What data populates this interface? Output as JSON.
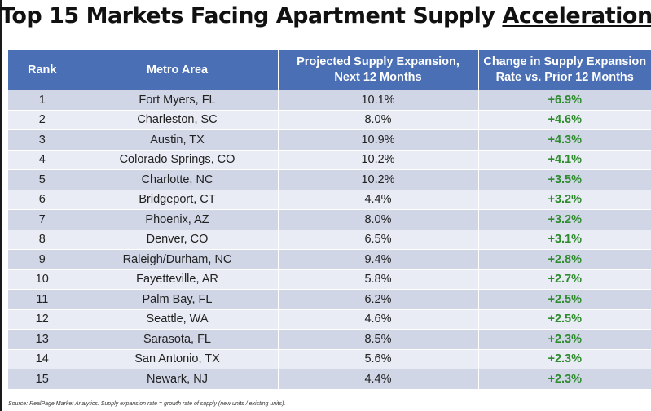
{
  "title": {
    "prefix": "Top 15 Markets Facing Apartment Supply ",
    "underlined": "Acceleration"
  },
  "chart_data": {
    "type": "table",
    "title": "Top 15 Markets Facing Apartment Supply Acceleration",
    "columns": [
      {
        "line1": "Rank",
        "line2": ""
      },
      {
        "line1": "Metro Area",
        "line2": ""
      },
      {
        "line1": "Projected Supply Expansion,",
        "line2": "Next 12 Months"
      },
      {
        "line1": "Change in Supply Expansion",
        "line2": "Rate vs. Prior 12 Months"
      }
    ],
    "rows": [
      {
        "rank": "1",
        "metro": "Fort Myers, FL",
        "expansion": "10.1%",
        "change": "+6.9%"
      },
      {
        "rank": "2",
        "metro": "Charleston, SC",
        "expansion": "8.0%",
        "change": "+4.6%"
      },
      {
        "rank": "3",
        "metro": "Austin, TX",
        "expansion": "10.9%",
        "change": "+4.3%"
      },
      {
        "rank": "4",
        "metro": "Colorado Springs, CO",
        "expansion": "10.2%",
        "change": "+4.1%"
      },
      {
        "rank": "5",
        "metro": "Charlotte, NC",
        "expansion": "10.2%",
        "change": "+3.5%"
      },
      {
        "rank": "6",
        "metro": "Bridgeport, CT",
        "expansion": "4.4%",
        "change": "+3.2%"
      },
      {
        "rank": "7",
        "metro": "Phoenix, AZ",
        "expansion": "8.0%",
        "change": "+3.2%"
      },
      {
        "rank": "8",
        "metro": "Denver, CO",
        "expansion": "6.5%",
        "change": "+3.1%"
      },
      {
        "rank": "9",
        "metro": "Raleigh/Durham, NC",
        "expansion": "9.4%",
        "change": "+2.8%"
      },
      {
        "rank": "10",
        "metro": "Fayetteville, AR",
        "expansion": "5.8%",
        "change": "+2.7%"
      },
      {
        "rank": "11",
        "metro": "Palm Bay, FL",
        "expansion": "6.2%",
        "change": "+2.5%"
      },
      {
        "rank": "12",
        "metro": "Seattle, WA",
        "expansion": "4.6%",
        "change": "+2.5%"
      },
      {
        "rank": "13",
        "metro": "Sarasota, FL",
        "expansion": "8.5%",
        "change": "+2.3%"
      },
      {
        "rank": "14",
        "metro": "San Antonio, TX",
        "expansion": "5.6%",
        "change": "+2.3%"
      },
      {
        "rank": "15",
        "metro": "Newark, NJ",
        "expansion": "4.4%",
        "change": "+2.3%"
      }
    ],
    "source": "Source: RealPage Market Analytics. Supply expansion rate = growth rate of supply (new units / existing units)."
  },
  "colors": {
    "header_bg": "#4a6fb5",
    "row_dark": "#d0d6e6",
    "row_light": "#e9ecf4",
    "positive": "#2e8b2e"
  }
}
